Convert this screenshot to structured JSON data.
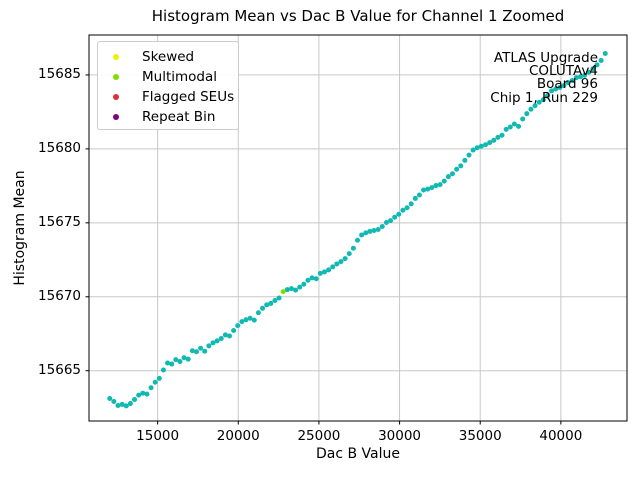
{
  "title": "Histogram Mean vs Dac B Value for Channel 1 Zoomed",
  "xlabel": "Dac B Value",
  "ylabel": "Histogram Mean",
  "annotation": {
    "lines": [
      "ATLAS Upgrade",
      "COLUTAv4",
      "Board 96",
      "Chip 1, Run 229"
    ]
  },
  "legend": {
    "items": [
      {
        "label": "Skewed",
        "color": "#f0f000"
      },
      {
        "label": "Multimodal",
        "color": "#7fe000"
      },
      {
        "label": "Flagged SEUs",
        "color": "#e03131"
      },
      {
        "label": "Repeat Bin",
        "color": "#800080"
      }
    ]
  },
  "colors": {
    "normal_points": "#10b9b2",
    "grid": "#c8c8c8",
    "spine": "#000000",
    "background": "#ffffff"
  },
  "chart_data": {
    "type": "scatter",
    "title": "Histogram Mean vs Dac B Value for Channel 1 Zoomed",
    "xlabel": "Dac B Value",
    "ylabel": "Histogram Mean",
    "xlim": [
      10745,
      44100
    ],
    "ylim": [
      15661.6,
      15687.7
    ],
    "xticks": [
      15000,
      20000,
      25000,
      30000,
      35000,
      40000
    ],
    "yticks": [
      15665,
      15670,
      15675,
      15680,
      15685
    ],
    "grid": true,
    "legend_position": "upper left",
    "series": [
      {
        "name": "normal",
        "color": "#10b9b2",
        "marker_radius": 2.5,
        "points": [
          [
            12032,
            15663.12
          ],
          [
            12288,
            15662.92
          ],
          [
            12544,
            15662.65
          ],
          [
            12800,
            15662.72
          ],
          [
            13056,
            15662.62
          ],
          [
            13312,
            15662.78
          ],
          [
            13568,
            15663.05
          ],
          [
            13824,
            15663.35
          ],
          [
            14080,
            15663.48
          ],
          [
            14336,
            15663.42
          ],
          [
            14592,
            15663.85
          ],
          [
            14848,
            15664.22
          ],
          [
            15104,
            15664.48
          ],
          [
            15360,
            15665.05
          ],
          [
            15616,
            15665.52
          ],
          [
            15872,
            15665.45
          ],
          [
            16128,
            15665.75
          ],
          [
            16384,
            15665.62
          ],
          [
            16640,
            15665.88
          ],
          [
            16896,
            15665.78
          ],
          [
            17152,
            15666.35
          ],
          [
            17408,
            15666.28
          ],
          [
            17664,
            15666.52
          ],
          [
            17920,
            15666.32
          ],
          [
            18176,
            15666.68
          ],
          [
            18432,
            15666.88
          ],
          [
            18688,
            15667.02
          ],
          [
            18944,
            15667.18
          ],
          [
            19200,
            15667.42
          ],
          [
            19456,
            15667.35
          ],
          [
            19712,
            15667.72
          ],
          [
            19968,
            15668.05
          ],
          [
            20224,
            15668.32
          ],
          [
            20480,
            15668.45
          ],
          [
            20736,
            15668.55
          ],
          [
            20992,
            15668.42
          ],
          [
            21248,
            15668.92
          ],
          [
            21504,
            15669.22
          ],
          [
            21760,
            15669.45
          ],
          [
            22016,
            15669.55
          ],
          [
            22272,
            15669.75
          ],
          [
            22528,
            15669.92
          ],
          [
            23040,
            15670.48
          ],
          [
            23296,
            15670.55
          ],
          [
            23552,
            15670.45
          ],
          [
            23808,
            15670.65
          ],
          [
            24064,
            15670.85
          ],
          [
            24320,
            15671.12
          ],
          [
            24576,
            15671.28
          ],
          [
            24832,
            15671.22
          ],
          [
            25088,
            15671.58
          ],
          [
            25344,
            15671.68
          ],
          [
            25600,
            15671.82
          ],
          [
            25856,
            15672.02
          ],
          [
            26112,
            15672.22
          ],
          [
            26368,
            15672.38
          ],
          [
            26624,
            15672.58
          ],
          [
            26880,
            15672.92
          ],
          [
            27136,
            15673.28
          ],
          [
            27392,
            15673.82
          ],
          [
            27648,
            15674.18
          ],
          [
            27904,
            15674.32
          ],
          [
            28160,
            15674.42
          ],
          [
            28416,
            15674.48
          ],
          [
            28672,
            15674.55
          ],
          [
            28928,
            15674.75
          ],
          [
            29184,
            15675.02
          ],
          [
            29440,
            15675.15
          ],
          [
            29696,
            15675.38
          ],
          [
            29952,
            15675.58
          ],
          [
            30208,
            15675.85
          ],
          [
            30464,
            15676.02
          ],
          [
            30720,
            15676.28
          ],
          [
            30976,
            15676.65
          ],
          [
            31232,
            15676.88
          ],
          [
            31488,
            15677.22
          ],
          [
            31744,
            15677.28
          ],
          [
            32000,
            15677.38
          ],
          [
            32256,
            15677.52
          ],
          [
            32512,
            15677.58
          ],
          [
            32768,
            15677.82
          ],
          [
            33024,
            15678.12
          ],
          [
            33280,
            15678.32
          ],
          [
            33536,
            15678.62
          ],
          [
            33792,
            15678.85
          ],
          [
            34048,
            15679.22
          ],
          [
            34304,
            15679.58
          ],
          [
            34560,
            15679.92
          ],
          [
            34816,
            15680.08
          ],
          [
            35072,
            15680.18
          ],
          [
            35328,
            15680.28
          ],
          [
            35584,
            15680.42
          ],
          [
            35840,
            15680.58
          ],
          [
            36096,
            15680.78
          ],
          [
            36352,
            15680.92
          ],
          [
            36608,
            15681.32
          ],
          [
            36864,
            15681.48
          ],
          [
            37120,
            15681.68
          ],
          [
            37376,
            15681.52
          ],
          [
            37632,
            15682.02
          ],
          [
            37888,
            15682.38
          ],
          [
            38144,
            15682.68
          ],
          [
            38400,
            15682.92
          ],
          [
            38656,
            15683.15
          ],
          [
            38912,
            15683.32
          ],
          [
            39168,
            15683.58
          ],
          [
            39424,
            15683.92
          ],
          [
            39680,
            15684.05
          ],
          [
            39936,
            15684.15
          ],
          [
            40192,
            15684.28
          ],
          [
            40448,
            15684.48
          ],
          [
            40704,
            15684.62
          ],
          [
            40960,
            15684.82
          ],
          [
            41216,
            15684.88
          ],
          [
            41472,
            15684.98
          ],
          [
            41728,
            15685.18
          ],
          [
            41984,
            15685.42
          ],
          [
            42240,
            15685.68
          ],
          [
            42496,
            15685.98
          ],
          [
            42752,
            15686.45
          ]
        ]
      },
      {
        "name": "Skewed",
        "color": "#f0f000",
        "marker_radius": 2.5,
        "points": []
      },
      {
        "name": "Multimodal",
        "color": "#7fe000",
        "marker_radius": 2.5,
        "points": [
          [
            22784,
            15670.35
          ]
        ]
      },
      {
        "name": "Flagged SEUs",
        "color": "#e03131",
        "marker_radius": 2.5,
        "points": []
      },
      {
        "name": "Repeat Bin",
        "color": "#800080",
        "marker_radius": 2.5,
        "points": []
      }
    ]
  }
}
